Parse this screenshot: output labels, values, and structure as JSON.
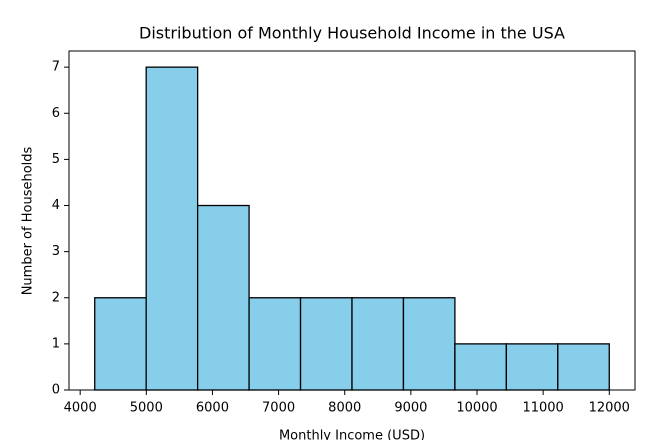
{
  "chart_data": {
    "type": "histogram",
    "title": "Distribution of Monthly Household Income in the USA",
    "x_label": "Monthly Income (USD)",
    "y_label": "Number of Households",
    "bins": [
      4220,
      4998,
      5776,
      6554,
      7332,
      8110,
      8888,
      9666,
      10444,
      11222,
      12000
    ],
    "values": [
      2,
      7,
      4,
      2,
      2,
      2,
      2,
      1,
      1,
      1
    ],
    "color": "#87ceeb",
    "edgecolor": "#000000",
    "xlim": [
      3831,
      12389
    ],
    "ylim": [
      0,
      7.35
    ],
    "xticks": [
      4000,
      5000,
      6000,
      7000,
      8000,
      9000,
      10000,
      11000,
      12000
    ],
    "yticks": [
      0,
      1,
      2,
      3,
      4,
      5,
      6,
      7
    ]
  }
}
